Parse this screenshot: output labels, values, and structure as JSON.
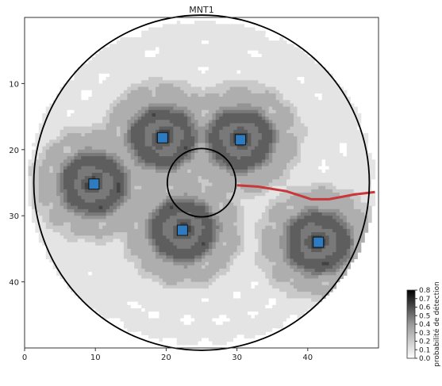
{
  "chart_data": {
    "type": "heatmap",
    "title": "MNT1",
    "xlabel": "",
    "ylabel": "",
    "xlim": [
      0,
      50
    ],
    "ylim": [
      50,
      0
    ],
    "x_ticks": [
      0,
      10,
      20,
      30,
      40
    ],
    "y_ticks": [
      10,
      20,
      30,
      40
    ],
    "outer_circle": {
      "cx": 25,
      "cy": 25,
      "r": 24.5
    },
    "inner_circle": {
      "cx": 25,
      "cy": 25,
      "r": 5
    },
    "sensors": [
      {
        "x": 19.5,
        "y": 18.2
      },
      {
        "x": 30.5,
        "y": 18.5
      },
      {
        "x": 9.8,
        "y": 25.2
      },
      {
        "x": 22.3,
        "y": 32.2
      },
      {
        "x": 41.5,
        "y": 34.0
      }
    ],
    "path": {
      "color": "#c8373a",
      "points": [
        [
          30,
          25.4
        ],
        [
          33,
          25.6
        ],
        [
          37,
          26.3
        ],
        [
          40.5,
          27.5
        ],
        [
          43,
          27.5
        ],
        [
          46.5,
          26.8
        ],
        [
          49.5,
          26.4
        ]
      ]
    },
    "colorbar": {
      "label": "probabilité de détection",
      "ticks": [
        0.0,
        0.1,
        0.2,
        0.3,
        0.4,
        0.5,
        0.6,
        0.7,
        0.8
      ],
      "tick_labels": [
        "0.0",
        "0.1",
        "0.2",
        "0.3",
        "0.4",
        "0.5",
        "0.6",
        "0.7",
        "0.8"
      ],
      "range": [
        0,
        0.8
      ]
    },
    "colors": {
      "sensor_fill": "#2e7bbf",
      "sensor_edge": "#111111",
      "circle": "#000000"
    }
  }
}
